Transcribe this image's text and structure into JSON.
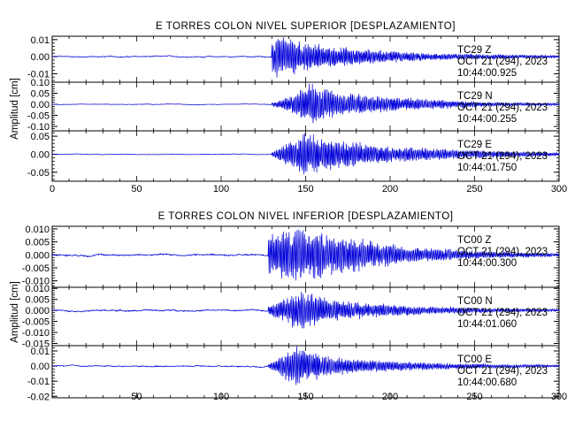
{
  "chart_data": [
    {
      "type": "line",
      "title": "E TORRES COLON NIVEL SUPERIOR [DESPLAZAMIENTO]",
      "ylabel": "Amplitud [cm]",
      "xlim": [
        0,
        300
      ],
      "x_ticks": [
        "0",
        "50",
        "100",
        "150",
        "200",
        "250",
        "300"
      ],
      "panels": [
        {
          "ylim": [
            -0.015,
            0.012
          ],
          "y_ticks": [
            -0.01,
            0.0,
            0.01
          ],
          "y_tick_labels": [
            "-0.01",
            "0.00",
            "0.01"
          ],
          "station": "TC29 Z",
          "date": "OCT 21 (294), 2023",
          "time": "10:44:00.925",
          "peak": 0.0125,
          "onset": 130,
          "pre_noise": 0.0004,
          "envelope": [
            [
              130,
              0.8
            ],
            [
              135,
              1.0
            ],
            [
              145,
              0.75
            ],
            [
              160,
              0.55
            ],
            [
              190,
              0.3
            ],
            [
              230,
              0.15
            ],
            [
              300,
              0.06
            ]
          ]
        },
        {
          "ylim": [
            -0.12,
            0.1
          ],
          "y_ticks": [
            -0.1,
            -0.05,
            0.0,
            0.05,
            0.1
          ],
          "y_tick_labels": [
            "-0.10",
            "-0.05",
            "0.00",
            "0.05",
            "0.10"
          ],
          "station": "TC29 N",
          "date": "OCT 21 (294), 2023",
          "time": "10:44:00.255",
          "peak": 0.095,
          "onset": 130,
          "pre_noise": 0.0015,
          "envelope": [
            [
              130,
              0.08
            ],
            [
              140,
              0.35
            ],
            [
              150,
              0.9
            ],
            [
              155,
              1.0
            ],
            [
              170,
              0.55
            ],
            [
              200,
              0.35
            ],
            [
              230,
              0.22
            ],
            [
              260,
              0.1
            ],
            [
              300,
              0.05
            ]
          ]
        },
        {
          "ylim": [
            -0.075,
            0.065
          ],
          "y_ticks": [
            -0.05,
            0.0,
            0.05
          ],
          "y_tick_labels": [
            "-0.05",
            "0.00",
            "0.05"
          ],
          "station": "TC29 E",
          "date": "OCT 21 (294), 2023",
          "time": "10:44:01.750",
          "peak": 0.06,
          "onset": 130,
          "pre_noise": 0.001,
          "envelope": [
            [
              130,
              0.1
            ],
            [
              140,
              0.55
            ],
            [
              150,
              1.0
            ],
            [
              165,
              0.75
            ],
            [
              190,
              0.45
            ],
            [
              220,
              0.3
            ],
            [
              260,
              0.15
            ],
            [
              300,
              0.08
            ]
          ]
        }
      ]
    },
    {
      "type": "line",
      "title": "E TORRES COLON NIVEL INFERIOR [DESPLAZAMIENTO]",
      "ylabel": "Amplitud [cm]",
      "xlim": [
        0,
        300
      ],
      "x_ticks": [
        "50",
        "100",
        "150",
        "200",
        "250",
        "300"
      ],
      "panels": [
        {
          "ylim": [
            -0.0125,
            0.011
          ],
          "y_ticks": [
            -0.01,
            -0.005,
            0.0,
            0.005,
            0.01
          ],
          "y_tick_labels": [
            "-0.010",
            "-0.005",
            "0.000",
            "0.005",
            "0.010"
          ],
          "station": "TC00 Z",
          "date": "OCT 21 (294), 2023",
          "time": "10:44:00.300",
          "peak": 0.0105,
          "onset": 128,
          "pre_noise": 0.0004,
          "envelope": [
            [
              128,
              0.7
            ],
            [
              135,
              0.9
            ],
            [
              145,
              1.0
            ],
            [
              160,
              0.8
            ],
            [
              185,
              0.55
            ],
            [
              210,
              0.3
            ],
            [
              250,
              0.15
            ],
            [
              300,
              0.06
            ]
          ]
        },
        {
          "ylim": [
            -0.016,
            0.0105
          ],
          "y_ticks": [
            -0.015,
            -0.01,
            -0.005,
            0.0,
            0.005,
            0.01
          ],
          "y_tick_labels": [
            "-0.015",
            "-0.010",
            "-0.005",
            "0.000",
            "0.005",
            "0.010"
          ],
          "station": "TC00 N",
          "date": "OCT 21 (294), 2023",
          "time": "10:44:01.060",
          "peak": 0.0095,
          "onset": 128,
          "pre_noise": 0.0004,
          "envelope": [
            [
              128,
              0.25
            ],
            [
              138,
              0.6
            ],
            [
              148,
              1.0
            ],
            [
              165,
              0.55
            ],
            [
              185,
              0.35
            ],
            [
              220,
              0.2
            ],
            [
              260,
              0.1
            ],
            [
              300,
              0.05
            ]
          ]
        },
        {
          "ylim": [
            -0.021,
            0.0135
          ],
          "y_ticks": [
            -0.02,
            -0.01,
            0.0,
            0.01
          ],
          "y_tick_labels": [
            "-0.02",
            "-0.01",
            "0.00",
            "0.01"
          ],
          "station": "TC00 E",
          "date": "OCT 21 (294), 2023",
          "time": "10:44:00.680",
          "peak": 0.014,
          "onset": 128,
          "pre_noise": 0.0005,
          "envelope": [
            [
              128,
              0.1
            ],
            [
              136,
              0.5
            ],
            [
              143,
              1.0
            ],
            [
              150,
              0.8
            ],
            [
              165,
              0.45
            ],
            [
              190,
              0.28
            ],
            [
              230,
              0.15
            ],
            [
              270,
              0.08
            ],
            [
              300,
              0.05
            ]
          ]
        }
      ]
    }
  ]
}
